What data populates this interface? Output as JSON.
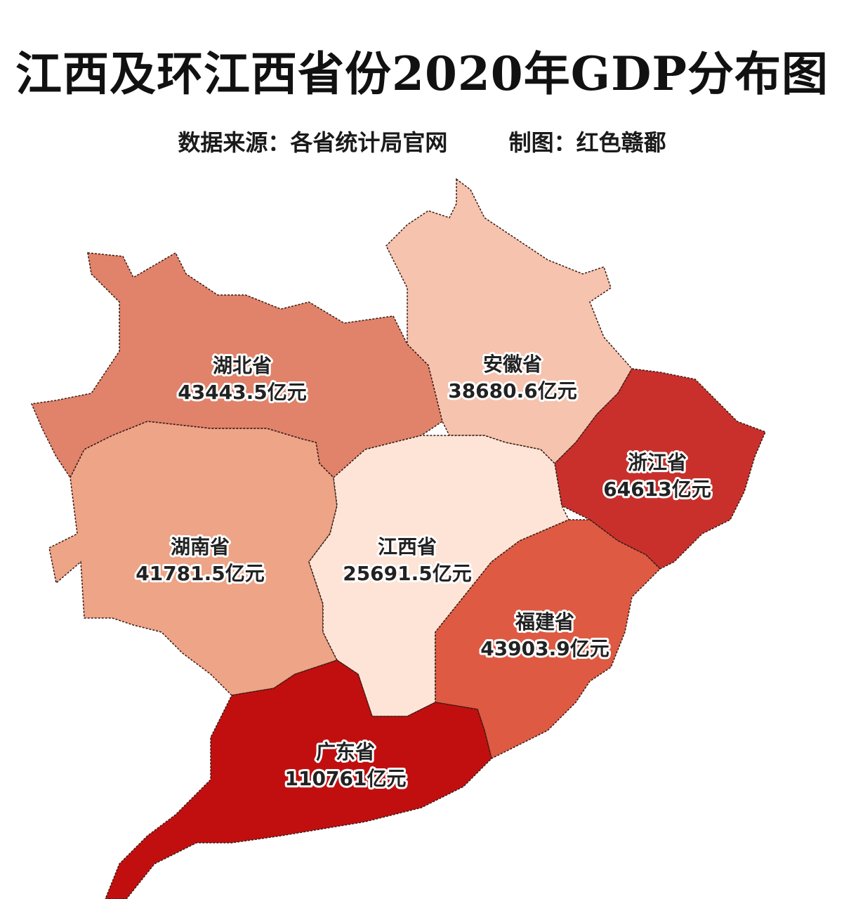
{
  "title": "江西及环江西省份2020年GDP分布图",
  "subtitle": {
    "source": "数据来源：各省统计局官网",
    "author": "制图：红色赣鄱"
  },
  "unit": "亿元",
  "provinces": [
    {
      "name": "湖北省",
      "gdp": "43443.5亿元",
      "color": "#e0836a"
    },
    {
      "name": "安徽省",
      "gdp": "38680.6亿元",
      "color": "#f6c3ae"
    },
    {
      "name": "浙江省",
      "gdp": "64613亿元",
      "color": "#c9302c"
    },
    {
      "name": "湖南省",
      "gdp": "41781.5亿元",
      "color": "#eda487"
    },
    {
      "name": "江西省",
      "gdp": "25691.5亿元",
      "color": "#fde4d6"
    },
    {
      "name": "福建省",
      "gdp": "43903.9亿元",
      "color": "#de5a43"
    },
    {
      "name": "广东省",
      "gdp": "110761亿元",
      "color": "#c10f10"
    }
  ]
}
